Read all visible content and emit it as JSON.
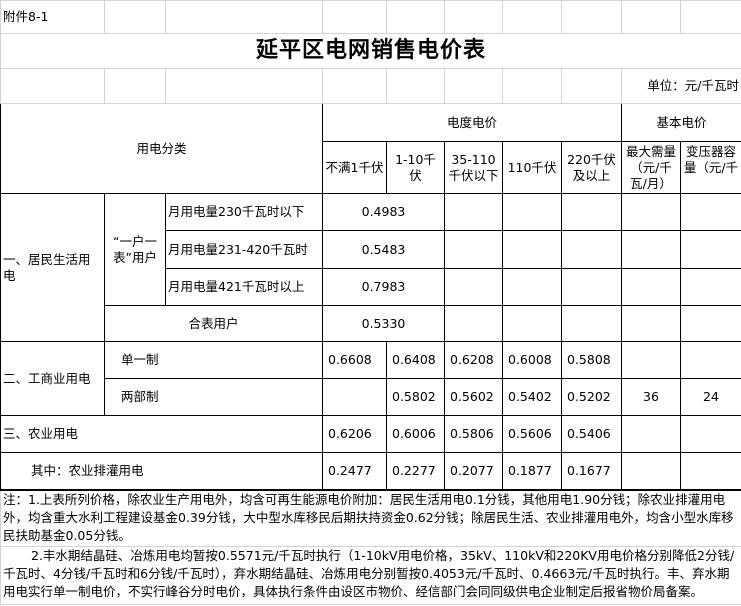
{
  "attachment_label": "附件8-1",
  "title": "延平区电网销售电价表",
  "unit": "单位：元/千瓦时",
  "header": {
    "category": "用电分类",
    "energy_price": "电度电价",
    "basic_price": "基本电价",
    "voltage_levels": [
      "不满1千伏",
      "1-10千伏",
      "35-110千伏以下",
      "110千伏",
      "220千伏及以上"
    ],
    "basic_cols": [
      "最大需量（元/千瓦/月）",
      "变压器容量（元/千"
    ]
  },
  "residential": {
    "label": "一、居民生活用电",
    "one_meter_label": "“一户一表”用户",
    "tiers": [
      {
        "label": "月用电量230千瓦时以下",
        "price": "0.4983"
      },
      {
        "label": "月用电量231-420千瓦时",
        "price": "0.5483"
      },
      {
        "label": "月用电量421千瓦时以上",
        "price": "0.7983"
      }
    ],
    "shared_meter": {
      "label": "合表用户",
      "price": "0.5330"
    }
  },
  "commercial": {
    "label": "二、工商业用电",
    "single": {
      "label": "单一制",
      "prices": [
        "0.6608",
        "0.6408",
        "0.6208",
        "0.6008",
        "0.5808"
      ]
    },
    "two_part": {
      "label": "两部制",
      "prices": [
        "",
        "0.5802",
        "0.5602",
        "0.5402",
        "0.5202"
      ],
      "max_demand": "36",
      "transformer": "24"
    }
  },
  "agriculture": {
    "label": "三、农业用电",
    "prices": [
      "0.6206",
      "0.6006",
      "0.5806",
      "0.5606",
      "0.5406"
    ],
    "irrigation": {
      "label": "其中：农业排灌用电",
      "prices": [
        "0.2477",
        "0.2277",
        "0.2077",
        "0.1877",
        "0.1677"
      ]
    }
  },
  "notes": [
    "注：1.上表所列价格，除农业生产用电外，均含可再生能源电价附加：居民生活用电0.1分钱，其他用电1.90分钱；除农业排灌用电外，均含重大水利工程建设基金0.39分钱，大中型水库移民后期扶持资金0.62分钱；除居民生活、农业排灌用电外，均含小型水库移民扶助基金0.05分钱。",
    "2.丰水期结晶硅、冶炼用电均暂按0.5571元/千瓦时执行（1-10kV用电价格，35kV、110kV和220KV用电价格分别降低2分钱/千瓦时、4分钱/千瓦时和6分钱/千瓦时），弃水期结晶硅、冶炼用电分别暂按0.4053元/千瓦时、0.4663元/千瓦时执行。丰、弃水期用电实行单一制电价，不实行峰谷分时电价，具体执行条件由设区市物价、经信部门会同同级供电企业制定后报省物价局备案。"
  ]
}
